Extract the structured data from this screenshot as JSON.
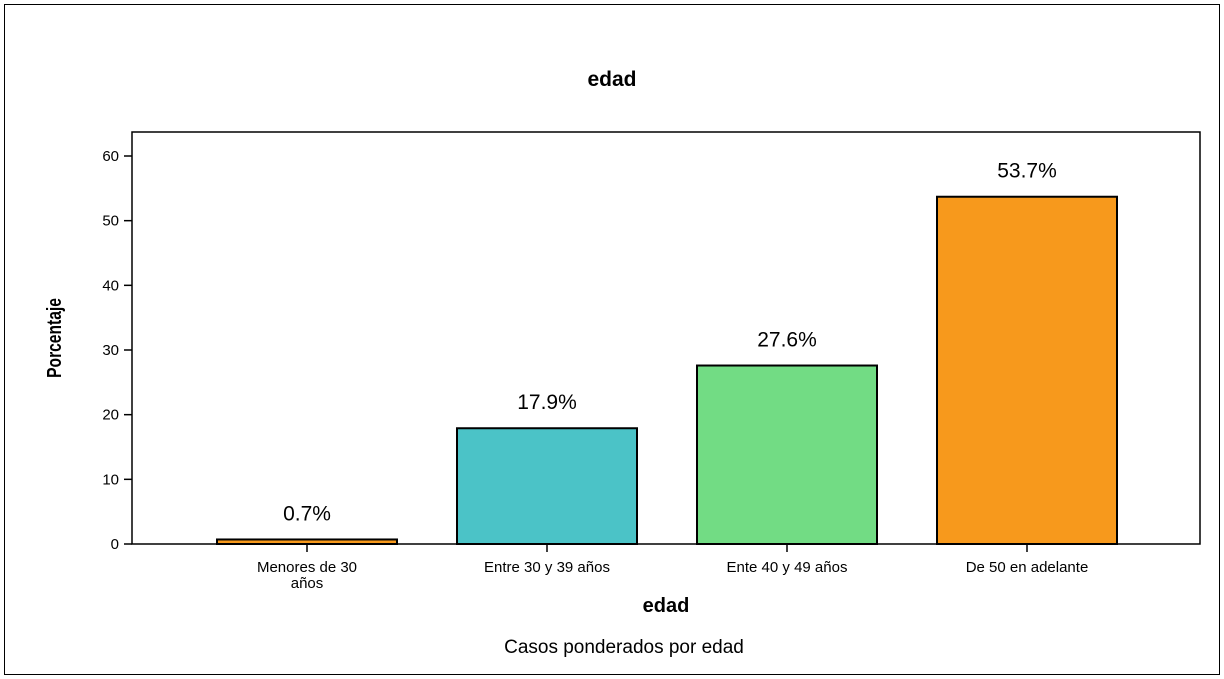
{
  "chart_data": {
    "type": "bar",
    "title": "edad",
    "xlabel": "edad",
    "ylabel": "Porcentaje",
    "footnote": "Casos ponderados por edad",
    "categories": [
      [
        "Menores de 30",
        "años"
      ],
      [
        "Entre 30 y 39 años"
      ],
      [
        "Ente 40 y 49 años"
      ],
      [
        "De 50 en adelante"
      ]
    ],
    "values": [
      0.7,
      17.9,
      27.6,
      53.7
    ],
    "value_labels": [
      "0.7%",
      "17.9%",
      "27.6%",
      "53.7%"
    ],
    "colors": [
      "#f7991c",
      "#4bc3c7",
      "#72dc84",
      "#f7991c"
    ],
    "yticks": [
      "0",
      "10",
      "20",
      "30",
      "40",
      "50",
      "60"
    ],
    "ylim": [
      0,
      60
    ],
    "grid": false
  }
}
